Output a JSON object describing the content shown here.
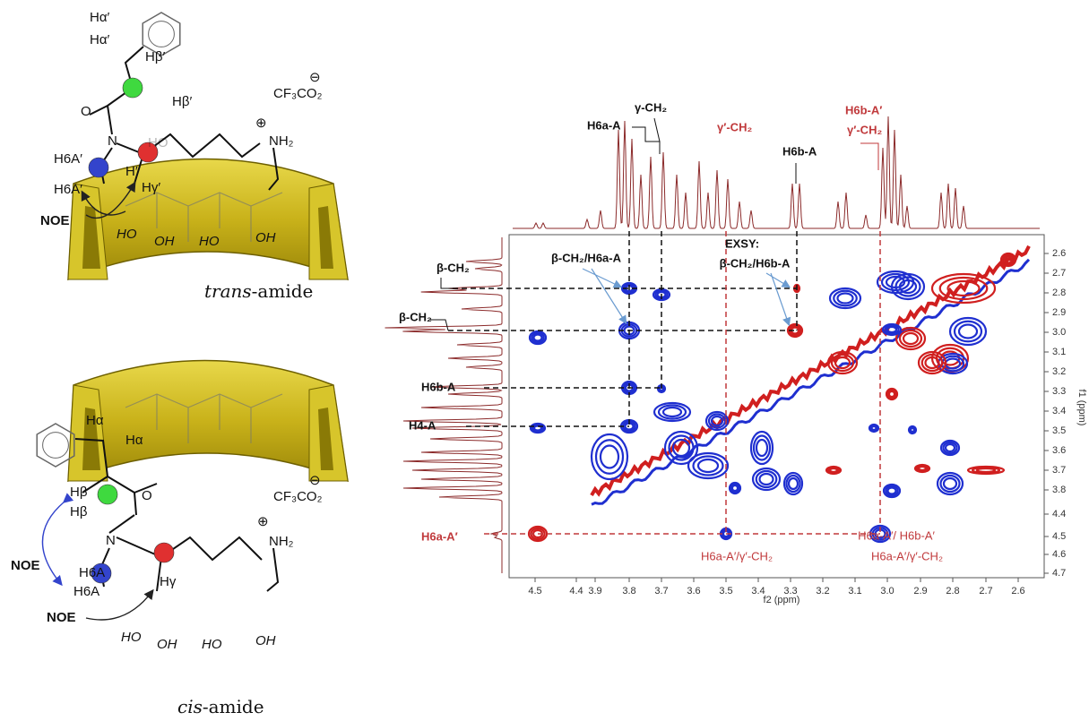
{
  "structures": [
    {
      "caption_prefix": "trans",
      "caption_suffix": "-amide",
      "labels": [
        "Hα′",
        "Hα′",
        "Hβ′",
        "Hβ′",
        "O",
        "N",
        "H6A′",
        "H6A′",
        "HO",
        "H′",
        "Hγ′",
        "NH₂",
        "⊕",
        "CF₃CO₂",
        "⊖",
        "NOE"
      ],
      "ring_labels": [
        "HO",
        "OH",
        "HO",
        "OH"
      ]
    },
    {
      "caption_prefix": "cis",
      "caption_suffix": "-amide",
      "labels": [
        "Hα",
        "Hα",
        "Hβ",
        "Hβ",
        "O",
        "N",
        "H6A",
        "H6A",
        "Hγ",
        "NH₂",
        "⊕",
        "CF₃CO₂",
        "⊖",
        "NOE",
        "NOE"
      ],
      "ring_labels": [
        "HO",
        "OH",
        "HO",
        "OH"
      ]
    }
  ],
  "spectrum": {
    "x_axis_label": "f2 (ppm)",
    "y_axis_label": "f1 (ppm)",
    "x_ticks": [
      "4.5",
      "4.4",
      "3.9",
      "3.8",
      "3.7",
      "3.6",
      "3.5",
      "3.4",
      "3.3",
      "3.2",
      "3.1",
      "3.0",
      "2.9",
      "2.8",
      "2.7",
      "2.6"
    ],
    "y_ticks": [
      "2.6",
      "2.7",
      "2.8",
      "2.9",
      "3.0",
      "3.1",
      "3.2",
      "3.3",
      "3.4",
      "3.5",
      "3.6",
      "3.7",
      "3.8",
      "4.4",
      "4.5",
      "4.6",
      "4.7"
    ],
    "top_labels": [
      "H6a-A",
      "γ-CH₂",
      "γ′-CH₂",
      "H6b-A",
      "H6b-A′",
      "γ′-CH₂"
    ],
    "left_labels": [
      "β-CH₂",
      "β-CH₂",
      "H6b-A",
      "H4-A",
      "H6a-A′"
    ],
    "cross_labels": [
      "β-CH₂/H6a-A",
      "EXSY:",
      "β-CH₂/H6b-A",
      "H6a-A′/γ′-CH₂",
      "H6a-A′/ H6b-A′",
      "H6a-A′/γ′-CH₂"
    ]
  }
}
